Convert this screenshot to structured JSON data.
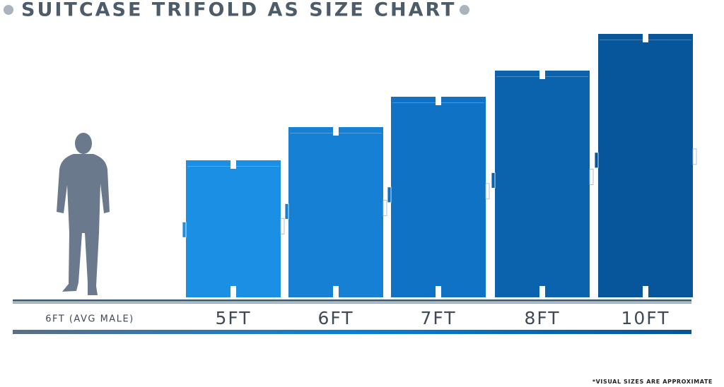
{
  "title": "SUITCASE TRIFOLD AS SIZE CHART",
  "person_label": "6FT (AVG MALE)",
  "items": [
    {
      "label": "5FT"
    },
    {
      "label": "6FT"
    },
    {
      "label": "7FT"
    },
    {
      "label": "8FT"
    },
    {
      "label": "10FT"
    }
  ],
  "footnote": "*VISUAL SIZES ARE APPROXIMATE"
}
